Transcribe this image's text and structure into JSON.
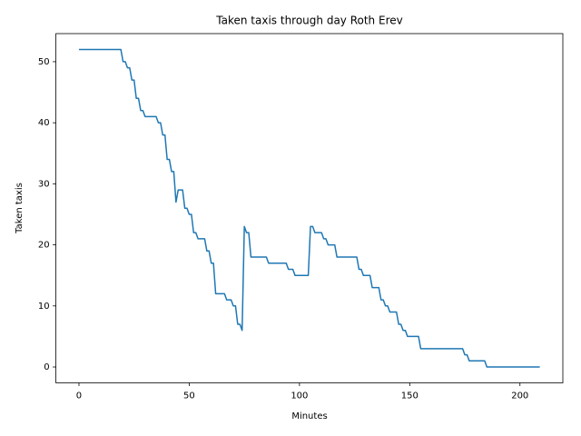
{
  "chart_data": {
    "type": "line",
    "title": "Taken taxis through day Roth Erev",
    "xlabel": "Minutes",
    "ylabel": "Taken taxis",
    "x": [
      0,
      19,
      20,
      21,
      22,
      23,
      24,
      25,
      26,
      27,
      28,
      29,
      30,
      35,
      36,
      37,
      38,
      39,
      40,
      41,
      42,
      43,
      44,
      45,
      47,
      48,
      49,
      50,
      51,
      52,
      53,
      54,
      57,
      58,
      59,
      60,
      61,
      62,
      66,
      67,
      69,
      70,
      71,
      72,
      73,
      74,
      75,
      76,
      77,
      78,
      85,
      86,
      94,
      95,
      97,
      98,
      104,
      105,
      106,
      107,
      110,
      111,
      112,
      113,
      116,
      117,
      126,
      127,
      128,
      129,
      132,
      133,
      136,
      137,
      138,
      139,
      140,
      141,
      144,
      145,
      146,
      147,
      148,
      149,
      154,
      155,
      174,
      175,
      176,
      177,
      184,
      185,
      209
    ],
    "series": [
      {
        "color": "#1f77b4",
        "values": [
          52,
          52,
          50,
          50,
          49,
          49,
          47,
          47,
          44,
          44,
          42,
          42,
          41,
          41,
          40,
          40,
          38,
          38,
          34,
          34,
          32,
          32,
          27,
          29,
          29,
          26,
          26,
          25,
          25,
          22,
          22,
          21,
          21,
          19,
          19,
          17,
          17,
          12,
          12,
          11,
          11,
          10,
          10,
          7,
          7,
          6,
          23,
          22,
          22,
          18,
          18,
          17,
          17,
          16,
          16,
          15,
          15,
          23,
          23,
          22,
          22,
          21,
          21,
          20,
          20,
          18,
          18,
          16,
          16,
          15,
          15,
          13,
          13,
          11,
          11,
          10,
          10,
          9,
          9,
          7,
          7,
          6,
          6,
          5,
          5,
          3,
          3,
          2,
          2,
          1,
          1,
          0,
          0
        ]
      }
    ],
    "xlim": [
      -10.45,
      219.45
    ],
    "xticks": [
      0,
      50,
      100,
      150,
      200
    ],
    "ylim": [
      -2.6,
      54.6
    ],
    "yticks": [
      0,
      10,
      20,
      30,
      40,
      50
    ],
    "grid": false
  }
}
